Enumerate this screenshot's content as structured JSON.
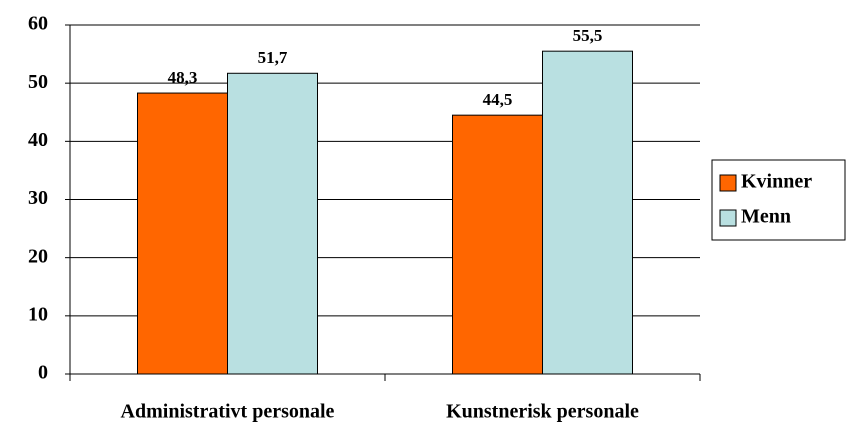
{
  "chart_data": {
    "type": "bar",
    "categories": [
      "Administrativt personale",
      "Kunstnerisk personale"
    ],
    "series": [
      {
        "name": "Kvinner",
        "color": "#ff6600",
        "values": [
          48.3,
          44.5
        ],
        "value_labels": [
          "48,3",
          "44,5"
        ]
      },
      {
        "name": "Menn",
        "color": "#b9e0e1",
        "values": [
          51.7,
          55.5
        ],
        "value_labels": [
          "51,7",
          "55,5"
        ]
      }
    ],
    "ylim": [
      0,
      60
    ],
    "yticks": [
      0,
      10,
      20,
      30,
      40,
      50,
      60
    ],
    "grid": true,
    "legend": "right"
  }
}
